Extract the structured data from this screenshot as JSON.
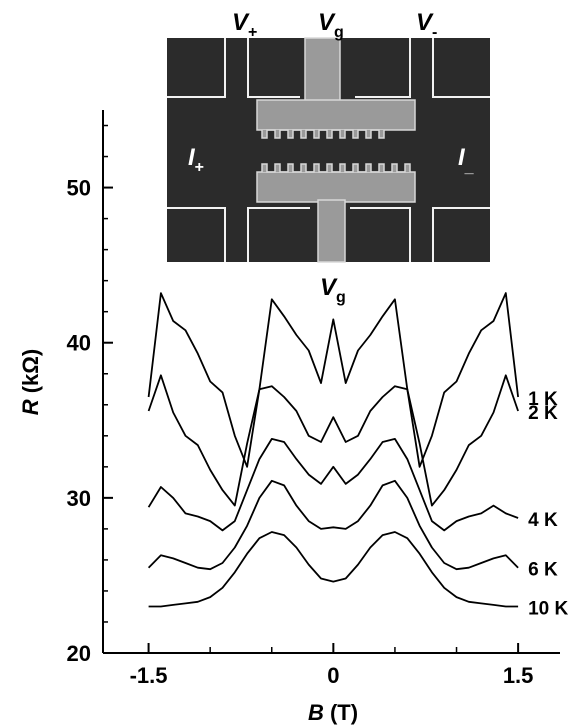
{
  "chart_data": {
    "type": "line",
    "xlabel": {
      "symbol": "B",
      "unit": "(T)"
    },
    "ylabel": {
      "symbol": "R",
      "unit": "(kΩ)"
    },
    "x": [
      -1.5,
      -1.4,
      -1.3,
      -1.2,
      -1.1,
      -1.0,
      -0.9,
      -0.8,
      -0.7,
      -0.6,
      -0.5,
      -0.4,
      -0.3,
      -0.2,
      -0.1,
      0,
      0.1,
      0.2,
      0.3,
      0.4,
      0.5,
      0.6,
      0.7,
      0.8,
      0.9,
      1.0,
      1.1,
      1.2,
      1.3,
      1.4,
      1.5
    ],
    "series": [
      {
        "name": "1 K",
        "color": "#000000",
        "values": [
          36.5,
          43.2,
          41.4,
          40.8,
          39.3,
          37.5,
          36.8,
          34.0,
          32.0,
          37.0,
          42.8,
          41.7,
          40.5,
          39.5,
          37.4,
          41.5,
          37.4,
          39.5,
          40.5,
          41.7,
          42.8,
          37.0,
          32.0,
          34.0,
          36.8,
          37.5,
          39.3,
          40.8,
          41.4,
          43.2,
          36.5
        ]
      },
      {
        "name": "2 K",
        "color": "#000000",
        "values": [
          35.6,
          37.9,
          35.5,
          34.0,
          33.4,
          31.8,
          30.5,
          29.5,
          33.5,
          37.0,
          37.2,
          36.5,
          35.6,
          34.0,
          33.6,
          35.2,
          33.6,
          34.0,
          35.6,
          36.5,
          37.2,
          37.0,
          33.5,
          29.5,
          30.5,
          31.8,
          33.4,
          34.0,
          35.5,
          37.9,
          35.6
        ]
      },
      {
        "name": "4 K",
        "color": "#000000",
        "values": [
          29.4,
          30.7,
          30.0,
          29.0,
          28.8,
          28.5,
          27.9,
          28.5,
          30.5,
          32.5,
          33.8,
          33.6,
          32.5,
          31.5,
          30.9,
          32.0,
          30.9,
          31.5,
          32.5,
          33.6,
          33.8,
          32.5,
          30.5,
          28.5,
          27.9,
          28.5,
          28.8,
          29.0,
          29.5,
          29.0,
          28.7
        ]
      },
      {
        "name": "6 K",
        "color": "#000000",
        "values": [
          25.5,
          26.3,
          26.1,
          25.8,
          25.5,
          25.4,
          25.8,
          26.8,
          28.2,
          30.0,
          31.1,
          30.8,
          29.5,
          28.5,
          28.0,
          28.1,
          28.0,
          28.5,
          29.5,
          30.8,
          31.1,
          30.0,
          28.2,
          26.8,
          25.8,
          25.4,
          25.5,
          25.8,
          26.1,
          26.3,
          25.5
        ]
      },
      {
        "name": "10 K",
        "color": "#000000",
        "values": [
          23.0,
          23.0,
          23.1,
          23.2,
          23.3,
          23.6,
          24.2,
          25.2,
          26.4,
          27.4,
          27.8,
          27.6,
          26.8,
          25.7,
          24.8,
          24.6,
          24.8,
          25.7,
          26.8,
          27.6,
          27.8,
          27.4,
          26.4,
          25.2,
          24.2,
          23.6,
          23.3,
          23.2,
          23.1,
          23.0,
          23.0
        ]
      }
    ],
    "xlim": [
      -1.87,
      1.84
    ],
    "ylim": [
      20,
      55
    ],
    "xticks": [
      -1.5,
      0,
      1.5
    ],
    "xminorticks": [
      -1.0,
      -0.5,
      0.5,
      1.0
    ],
    "yticks": [
      20,
      30,
      40,
      50
    ],
    "yminorticks": [
      22,
      24,
      26,
      28,
      32,
      34,
      36,
      38,
      42,
      44,
      46,
      48,
      52,
      54
    ],
    "inset_labels": [
      {
        "main": "V",
        "sub": "+"
      },
      {
        "main": "V",
        "sub": "g"
      },
      {
        "main": "V",
        "sub": "-"
      },
      {
        "main": "I",
        "sub": "+"
      },
      {
        "main": "I",
        "sub": "_"
      },
      {
        "main": "V",
        "sub": "g"
      }
    ]
  }
}
